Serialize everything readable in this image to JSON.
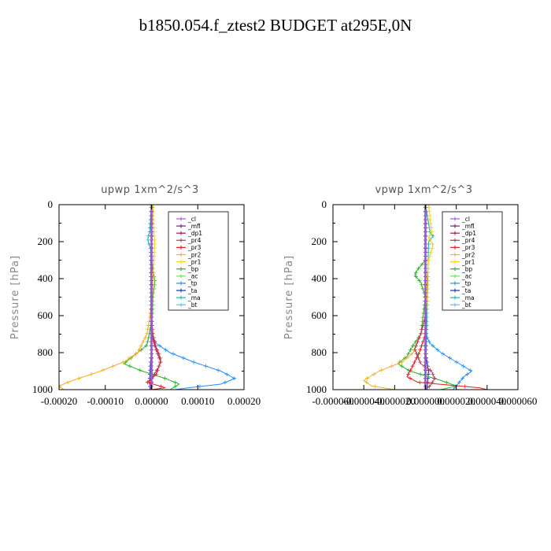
{
  "figure": {
    "title": "b1850.054.f_ztest2  BUDGET at295E,0N"
  },
  "colors": {
    "_cl": "#9b59d0",
    "_mfl": "#7a1f7a",
    "_dp1": "#a0205a",
    "_pr4": "#b03a5a",
    "_pr3": "#e02020",
    "_pr2": "#f0b030",
    "_pr1": "#f5d020",
    "_bp": "#30b030",
    "_ac": "#70e070",
    "_tp": "#1e90ff",
    "_ta": "#1a2dbf",
    "_ma": "#20b0b0",
    "_bt": "#40d0f0"
  },
  "chart_data": [
    {
      "type": "line",
      "title": "upwp   1xm^2/s^3",
      "ylabel": "Pressure [hPa]",
      "xlim": [
        -0.0002,
        0.0002
      ],
      "ylim": [
        1000,
        0
      ],
      "xticks": [
        -0.0002,
        -0.0001,
        0.0,
        0.0001,
        0.0002
      ],
      "xtick_labels": [
        "-0.00020",
        "-0.00010",
        "0.00000",
        "0.00010",
        "0.00020"
      ],
      "yticks": [
        0,
        200,
        400,
        600,
        800,
        1000
      ],
      "ytick_labels": [
        "0",
        "200",
        "400",
        "600",
        "800",
        "1000"
      ],
      "legend": "top-right",
      "series": [
        {
          "name": "_cl",
          "p": [
            0,
            1000
          ],
          "v": [
            0,
            0
          ]
        },
        {
          "name": "_mfl",
          "p": [
            0,
            1000
          ],
          "v": [
            0,
            0
          ]
        },
        {
          "name": "_dp1",
          "p": [
            0,
            1000
          ],
          "v": [
            0,
            0
          ]
        },
        {
          "name": "_pr4",
          "p": [
            0,
            200,
            400,
            600,
            700,
            750,
            800,
            850,
            880,
            920,
            960,
            1000
          ],
          "v": [
            0,
            0,
            0,
            0,
            0,
            5e-06,
            1.2e-05,
            2e-05,
            1.5e-05,
            5e-06,
            -5e-06,
            0.0
          ]
        },
        {
          "name": "_pr3",
          "p": [
            0,
            600,
            700,
            760,
            800,
            840,
            880,
            920,
            960,
            990,
            1000
          ],
          "v": [
            0,
            0,
            3e-06,
            8e-06,
            1.5e-05,
            2e-05,
            1.5e-05,
            1e-05,
            -1e-05,
            3e-05,
            0.0
          ]
        },
        {
          "name": "_pr2",
          "p": [
            0,
            500,
            600,
            700,
            750,
            800,
            850,
            900,
            950,
            980,
            1000
          ],
          "v": [
            0,
            0,
            -3e-06,
            -1e-05,
            -2e-05,
            -3e-05,
            -6e-05,
            -0.00011,
            -0.00017,
            -0.0002,
            -0.00019
          ]
        },
        {
          "name": "_pr1",
          "p": [
            0,
            150,
            200,
            260,
            300,
            400,
            500,
            600,
            700,
            1000
          ],
          "v": [
            3e-06,
            5e-06,
            7e-06,
            6e-06,
            5e-06,
            3e-06,
            2e-06,
            1e-06,
            0,
            0
          ]
        },
        {
          "name": "_bp",
          "p": [
            0,
            300,
            380,
            420,
            500,
            600,
            700,
            760,
            800,
            840,
            860,
            900,
            940,
            970,
            1000
          ],
          "v": [
            0,
            0,
            5e-06,
            7e-06,
            3e-06,
            2e-06,
            -5e-06,
            -1e-05,
            -3e-05,
            -5e-05,
            -6e-05,
            -2e-05,
            3e-05,
            6e-05,
            4e-05
          ]
        },
        {
          "name": "_ac",
          "p": [
            0,
            1000
          ],
          "v": [
            0,
            0
          ]
        },
        {
          "name": "_tp",
          "p": [
            0,
            700,
            750,
            800,
            850,
            900,
            940,
            970,
            990,
            1000
          ],
          "v": [
            0,
            0,
            1e-05,
            4e-05,
            9e-05,
            0.00015,
            0.00018,
            0.00015,
            8e-05,
            5e-05
          ]
        },
        {
          "name": "_ta",
          "p": [
            0,
            800,
            850,
            900,
            950,
            1000
          ],
          "v": [
            0,
            0,
            -2e-06,
            -3e-06,
            -4e-06,
            -3e-06
          ]
        },
        {
          "name": "_ma",
          "p": [
            0,
            150,
            180,
            200,
            240,
            1000
          ],
          "v": [
            0,
            -4e-06,
            -8e-06,
            -7e-06,
            -2e-06,
            0
          ]
        },
        {
          "name": "_bt",
          "p": [
            0,
            1000
          ],
          "v": [
            0,
            0
          ]
        }
      ]
    },
    {
      "type": "line",
      "title": "vpwp   1xm^2/s^3",
      "ylabel": "Pressure [hPa]",
      "xlim": [
        -6e-05,
        6e-05
      ],
      "ylim": [
        1000,
        0
      ],
      "xticks": [
        -6e-05,
        -4e-05,
        -2e-05,
        0.0,
        2e-05,
        4e-05,
        6e-05
      ],
      "xtick_labels": [
        "-0.000060",
        "-0.000040",
        "-0.000020",
        "0.000000",
        "0.000020",
        "0.000040",
        "0.000060"
      ],
      "yticks": [
        0,
        200,
        400,
        600,
        800,
        1000
      ],
      "ytick_labels": [
        "0",
        "200",
        "400",
        "600",
        "800",
        "1000"
      ],
      "legend": "top-right",
      "series": [
        {
          "name": "_cl",
          "p": [
            0,
            1000
          ],
          "v": [
            0,
            0
          ]
        },
        {
          "name": "_mfl",
          "p": [
            0,
            1000
          ],
          "v": [
            0,
            0
          ]
        },
        {
          "name": "_dp1",
          "p": [
            0,
            1000
          ],
          "v": [
            0,
            0
          ]
        },
        {
          "name": "_pr4",
          "p": [
            0,
            600,
            700,
            780,
            820,
            860,
            900,
            940,
            980,
            1000
          ],
          "v": [
            0,
            0,
            -3e-06,
            -7e-06,
            -5e-06,
            -3e-06,
            4e-06,
            6e-06,
            3e-06,
            0.0
          ]
        },
        {
          "name": "_pr3",
          "p": [
            0,
            700,
            800,
            850,
            900,
            930,
            960,
            990,
            1000
          ],
          "v": [
            0,
            0,
            -4e-06,
            -7e-06,
            -1e-05,
            -1.2e-05,
            -5e-06,
            3.5e-05,
            4e-05
          ]
        },
        {
          "name": "_pr2",
          "p": [
            0,
            600,
            700,
            800,
            850,
            900,
            950,
            980,
            1000
          ],
          "v": [
            0,
            0,
            -3e-06,
            -8e-06,
            -1.5e-05,
            -3e-05,
            -4e-05,
            -3.5e-05,
            -2e-05
          ]
        },
        {
          "name": "_pr1",
          "p": [
            0,
            150,
            180,
            220,
            300,
            400,
            500,
            700,
            1000
          ],
          "v": [
            2e-06,
            4e-06,
            2e-06,
            5e-06,
            2e-06,
            1e-06,
            1e-06,
            0,
            0
          ]
        },
        {
          "name": "_bp",
          "p": [
            0,
            300,
            350,
            380,
            420,
            500,
            700,
            760,
            820,
            860,
            900,
            950,
            980,
            1000
          ],
          "v": [
            0,
            0,
            -5e-06,
            -7e-06,
            -3e-06,
            0,
            -3e-06,
            -8e-06,
            -1.2e-05,
            -1.8e-05,
            -1e-05,
            1e-05,
            2e-05,
            1e-05
          ]
        },
        {
          "name": "_ac",
          "p": [
            0,
            1000
          ],
          "v": [
            0,
            0
          ]
        },
        {
          "name": "_tp",
          "p": [
            0,
            700,
            750,
            800,
            850,
            900,
            930,
            960,
            1000
          ],
          "v": [
            0,
            0,
            3e-06,
            1e-05,
            2e-05,
            3e-05,
            2.5e-05,
            2.2e-05,
            1.8e-05
          ]
        },
        {
          "name": "_ta",
          "p": [
            0,
            800,
            900,
            1000
          ],
          "v": [
            0,
            0,
            2e-06,
            1e-06
          ]
        },
        {
          "name": "_ma",
          "p": [
            0,
            150,
            170,
            200,
            1000
          ],
          "v": [
            0,
            3e-06,
            5e-06,
            2e-06,
            0
          ]
        },
        {
          "name": "_bt",
          "p": [
            0,
            1000
          ],
          "v": [
            0,
            0
          ]
        }
      ]
    }
  ]
}
